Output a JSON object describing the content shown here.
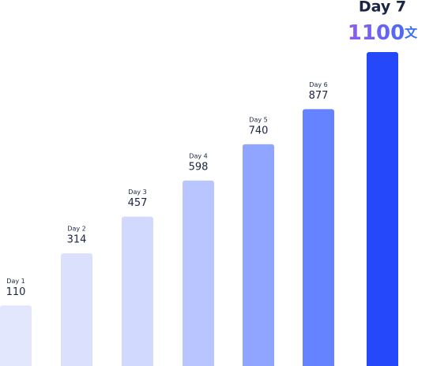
{
  "chart_data": {
    "type": "bar",
    "categories": [
      "Day 1",
      "Day 2",
      "Day 3",
      "Day 4",
      "Day 5",
      "Day 6",
      "Day 7"
    ],
    "values": [
      110,
      314,
      457,
      598,
      740,
      877,
      1100
    ],
    "unit": "文",
    "colors": [
      "#e2e7fd",
      "#dbe1fd",
      "#d2d9fe",
      "#b8c5ff",
      "#8fa5ff",
      "#6582ff",
      "#2448fa"
    ]
  }
}
